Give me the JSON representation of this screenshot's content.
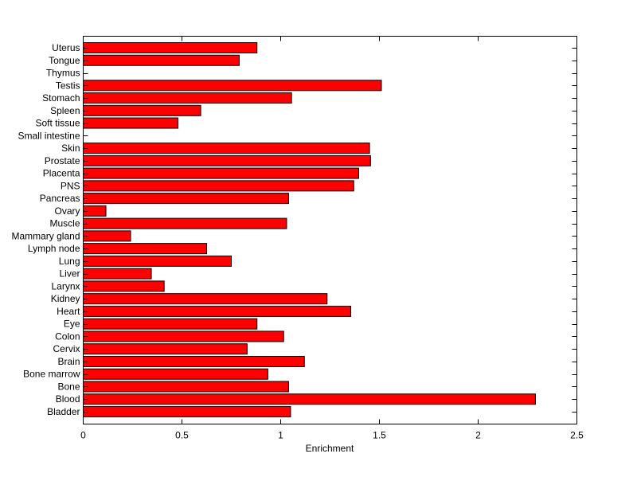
{
  "chart_data": {
    "type": "bar",
    "orientation": "horizontal",
    "title": "",
    "xlabel": "Enrichment",
    "ylabel": "",
    "xlim": [
      0,
      2.5
    ],
    "xticks": [
      0,
      0.5,
      1,
      1.5,
      2,
      2.5
    ],
    "xtick_labels": [
      "0",
      "0.5",
      "1",
      "1.5",
      "2",
      "2.5"
    ],
    "bar_color": "#ff0000",
    "categories": [
      "Bladder",
      "Blood",
      "Bone",
      "Bone marrow",
      "Brain",
      "Cervix",
      "Colon",
      "Eye",
      "Heart",
      "Kidney",
      "Larynx",
      "Liver",
      "Lung",
      "Lymph node",
      "Mammary gland",
      "Muscle",
      "Ovary",
      "Pancreas",
      "PNS",
      "Placenta",
      "Prostate",
      "Skin",
      "Small intestine",
      "Soft tissue",
      "Spleen",
      "Stomach",
      "Testis",
      "Thymus",
      "Tongue",
      "Uterus"
    ],
    "values": [
      1.05,
      2.29,
      1.04,
      0.935,
      1.12,
      0.83,
      1.015,
      0.88,
      1.355,
      1.235,
      0.41,
      0.345,
      0.75,
      0.625,
      0.24,
      1.03,
      0.115,
      1.04,
      1.37,
      1.395,
      1.455,
      1.45,
      0,
      0.48,
      0.595,
      1.055,
      1.51,
      0,
      0.79,
      0.88
    ]
  }
}
